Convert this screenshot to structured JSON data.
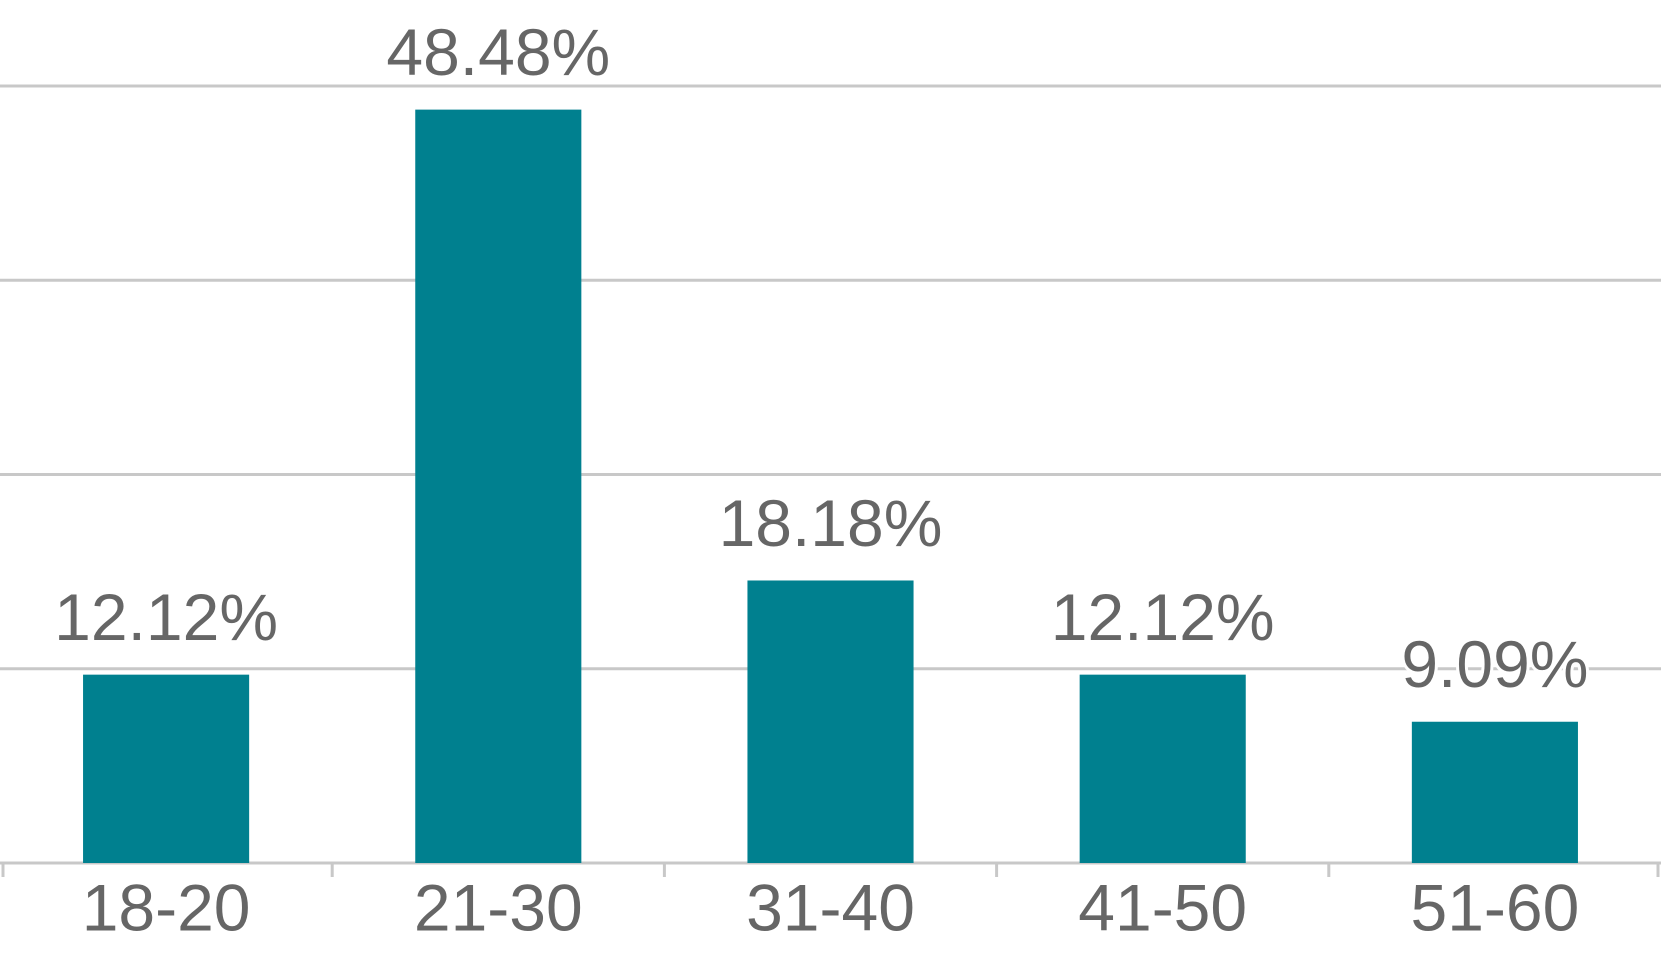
{
  "chart_data": {
    "type": "bar",
    "categories": [
      "18-20",
      "21-30",
      "31-40",
      "41-50",
      "51-60"
    ],
    "values": [
      12.12,
      48.48,
      18.18,
      12.12,
      9.09
    ],
    "value_labels": [
      "12.12%",
      "48.48%",
      "18.18%",
      "12.12%",
      "9.09%"
    ],
    "color": "#00808f",
    "ylim": [
      0,
      50
    ],
    "yticks": [
      0,
      12.5,
      25,
      37.5,
      50
    ],
    "grid": true
  }
}
